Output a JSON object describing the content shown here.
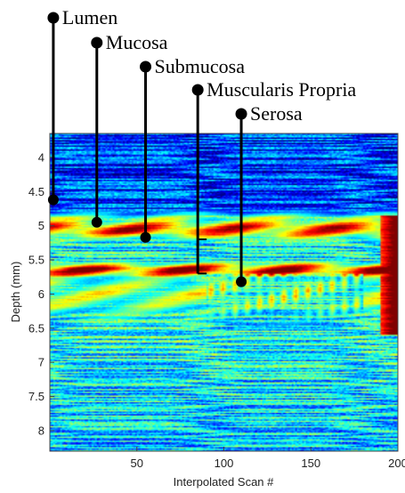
{
  "chart_data": {
    "type": "heatmap",
    "title": "",
    "xlabel": "Interpolated Scan #",
    "ylabel": "Depth (mm)",
    "xlim": [
      0,
      200
    ],
    "ylim": [
      3.65,
      8.3
    ],
    "y_reversed": true,
    "colormap": "jet",
    "grid": false,
    "x_ticks": [
      {
        "value": 50,
        "label": "50"
      },
      {
        "value": 100,
        "label": "100"
      },
      {
        "value": 150,
        "label": "150"
      },
      {
        "value": 200,
        "label": "200"
      }
    ],
    "y_ticks": [
      {
        "value": 4,
        "label": "4"
      },
      {
        "value": 4.5,
        "label": "4.5"
      },
      {
        "value": 5,
        "label": "5"
      },
      {
        "value": 5.5,
        "label": "5.5"
      },
      {
        "value": 6,
        "label": "6"
      },
      {
        "value": 6.5,
        "label": "6.5"
      },
      {
        "value": 7,
        "label": "7"
      },
      {
        "value": 7.5,
        "label": "7.5"
      },
      {
        "value": 8,
        "label": "8"
      }
    ],
    "annotations": [
      {
        "label": "Lumen",
        "x": 2,
        "y": 4.62
      },
      {
        "label": "Mucosa",
        "x": 27,
        "y": 4.95
      },
      {
        "label": "Submucosa",
        "x": 55,
        "y": 5.17
      },
      {
        "label": "Muscularis Propria",
        "x": 85,
        "y_range": [
          5.2,
          5.7
        ]
      },
      {
        "label": "Serosa",
        "x": 110,
        "y": 5.82
      }
    ],
    "bands": [
      {
        "y_center": 4.9,
        "width": 0.12,
        "intensity": 0.5
      },
      {
        "y_center": 5.05,
        "width": 0.16,
        "intensity": 0.9
      },
      {
        "y_center": 5.65,
        "width": 0.12,
        "intensity": 1.0
      },
      {
        "y_center": 6.0,
        "width": 0.45,
        "intensity": 0.55
      }
    ]
  }
}
